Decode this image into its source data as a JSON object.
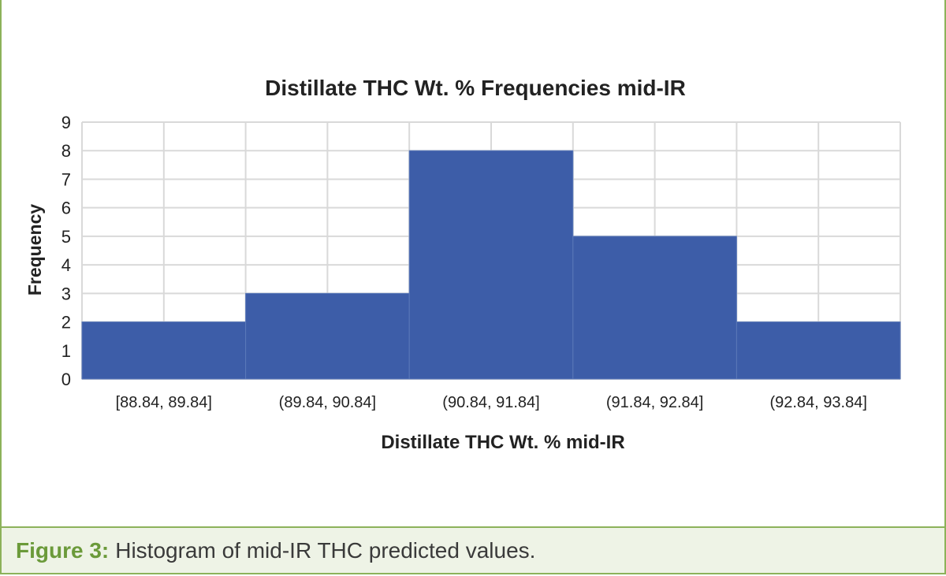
{
  "figure": {
    "label": "Figure 3:",
    "caption": "Histogram of mid-IR THC predicted values."
  },
  "colors": {
    "bar": "#3d5da8",
    "grid": "#d9d9d9",
    "accent": "#8cb25a"
  },
  "chart_data": {
    "type": "bar",
    "title": "Distillate THC Wt. % Frequencies mid-IR",
    "xlabel": "Distillate THC Wt. % mid-IR",
    "ylabel": "Frequency",
    "categories": [
      "[88.84, 89.84]",
      "(89.84, 90.84]",
      "(90.84, 91.84]",
      "(91.84, 92.84]",
      "(92.84, 93.84]"
    ],
    "values": [
      2,
      3,
      8,
      5,
      2
    ],
    "ylim": [
      0,
      9
    ],
    "yticks": [
      0,
      1,
      2,
      3,
      4,
      5,
      6,
      7,
      8,
      9
    ],
    "grid": true
  }
}
